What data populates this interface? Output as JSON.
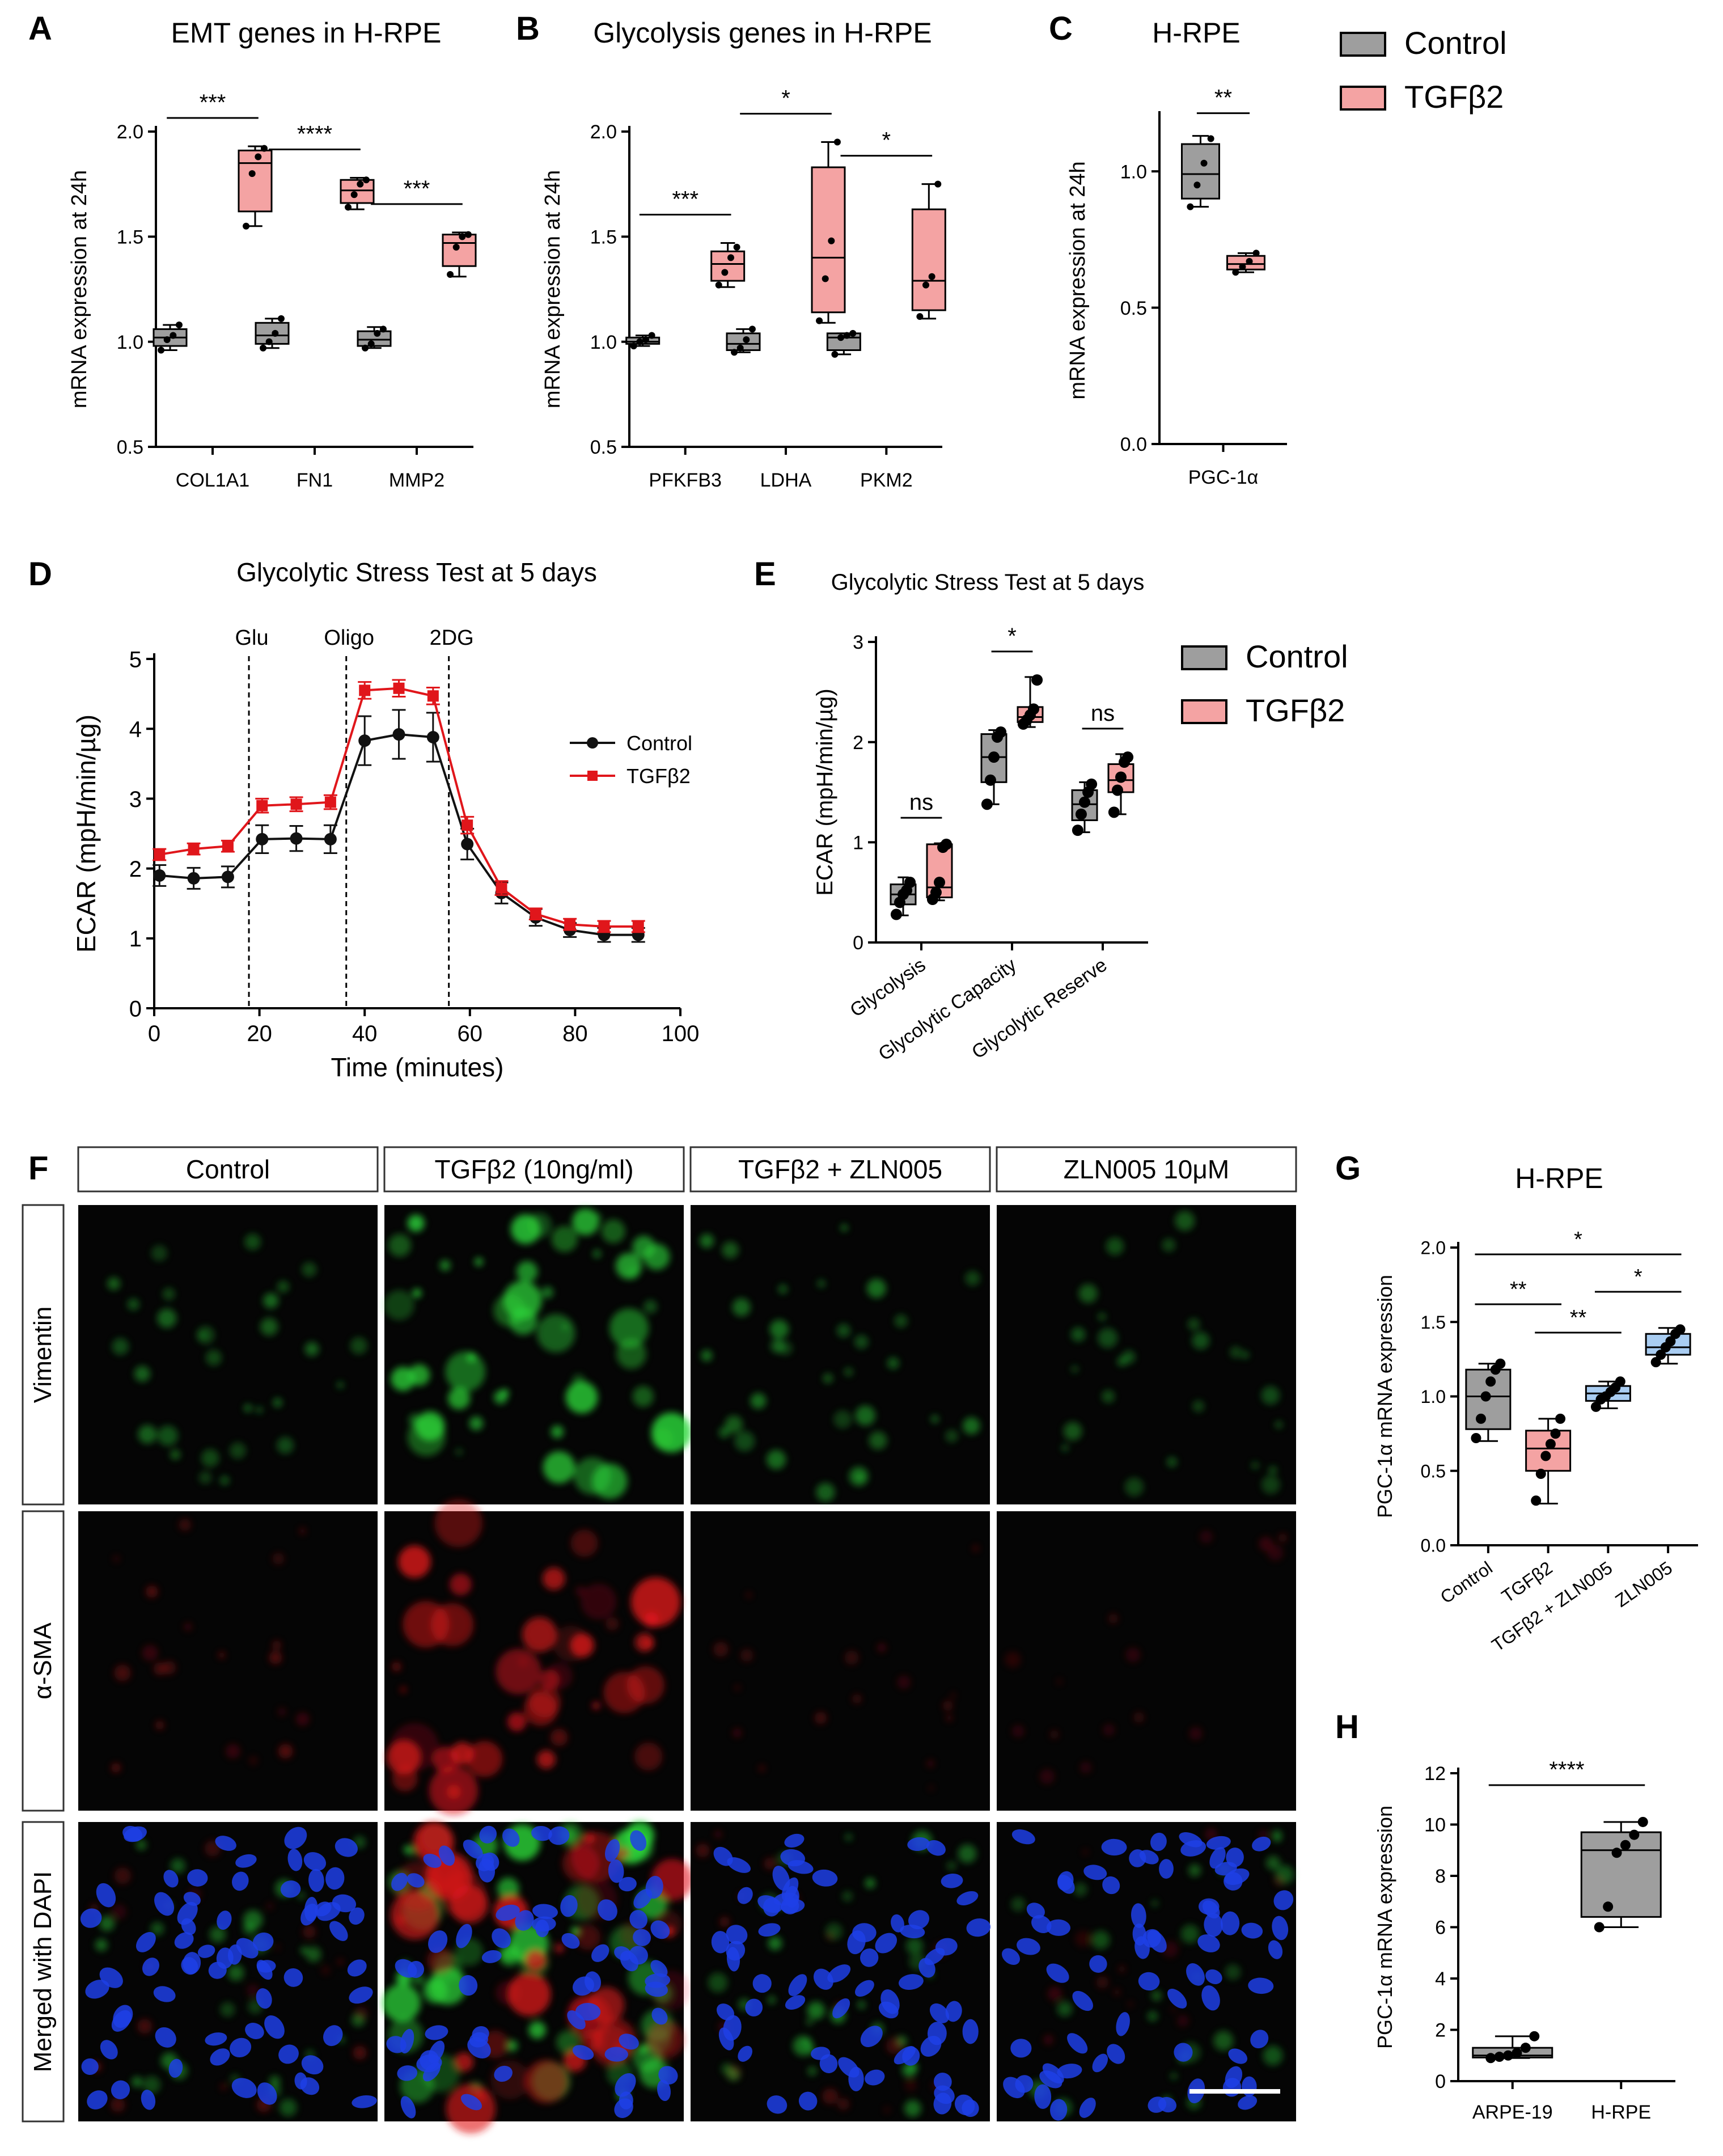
{
  "colors": {
    "control": "#9e9e9e",
    "tgf": "#f4a3a3",
    "zln": "#a9cdf2",
    "tgf_line": "#e0161b",
    "control_line": "#111111"
  },
  "chart_data": [
    {
      "letter": "A",
      "type": "box",
      "title": "EMT genes in H-RPE",
      "ylabel": "mRNA expression at 24h",
      "ylim": [
        0.5,
        2.0
      ],
      "yticks": [
        "0.5",
        "1.0",
        "1.5",
        "2.0"
      ],
      "categories": [
        "COL1A1",
        "FN1",
        "MMP2"
      ],
      "groups": [
        {
          "name": "Control",
          "boxes": [
            {
              "min": 0.96,
              "q1": 0.98,
              "median": 1.02,
              "q3": 1.06,
              "max": 1.08,
              "points": [
                0.96,
                1.01,
                1.03,
                1.08
              ]
            },
            {
              "min": 0.97,
              "q1": 0.99,
              "median": 1.03,
              "q3": 1.09,
              "max": 1.11,
              "points": [
                0.97,
                1.0,
                1.04,
                1.11
              ]
            },
            {
              "min": 0.97,
              "q1": 0.98,
              "median": 1.01,
              "q3": 1.05,
              "max": 1.07,
              "points": [
                0.97,
                0.99,
                1.04,
                1.06
              ]
            }
          ]
        },
        {
          "name": "TGFβ2",
          "boxes": [
            {
              "min": 1.55,
              "q1": 1.62,
              "median": 1.85,
              "q3": 1.91,
              "max": 1.93,
              "points": [
                1.55,
                1.8,
                1.88,
                1.92
              ]
            },
            {
              "min": 1.63,
              "q1": 1.66,
              "median": 1.72,
              "q3": 1.77,
              "max": 1.78,
              "points": [
                1.64,
                1.7,
                1.75,
                1.77
              ]
            },
            {
              "min": 1.31,
              "q1": 1.36,
              "median": 1.47,
              "q3": 1.51,
              "max": 1.52,
              "points": [
                1.32,
                1.45,
                1.5,
                1.51
              ]
            }
          ]
        }
      ],
      "significance": [
        "***",
        "****",
        "***"
      ]
    },
    {
      "letter": "B",
      "type": "box",
      "title": "Glycolysis genes in H-RPE",
      "ylabel": "mRNA expression at 24h",
      "ylim": [
        0.5,
        2.0
      ],
      "yticks": [
        "0.5",
        "1.0",
        "1.5",
        "2.0"
      ],
      "categories": [
        "PFKFB3",
        "LDHA",
        "PKM2"
      ],
      "groups": [
        {
          "name": "Control",
          "boxes": [
            {
              "min": 0.98,
              "q1": 0.99,
              "median": 1.0,
              "q3": 1.02,
              "max": 1.03,
              "points": [
                0.98,
                1.0,
                1.01,
                1.03
              ]
            },
            {
              "min": 0.95,
              "q1": 0.96,
              "median": 0.99,
              "q3": 1.04,
              "max": 1.06,
              "points": [
                0.95,
                0.97,
                1.01,
                1.06
              ]
            },
            {
              "min": 0.94,
              "q1": 0.96,
              "median": 1.02,
              "q3": 1.04,
              "max": 1.04,
              "points": [
                0.94,
                1.02,
                1.03,
                1.04
              ]
            }
          ]
        },
        {
          "name": "TGFβ2",
          "boxes": [
            {
              "min": 1.26,
              "q1": 1.29,
              "median": 1.37,
              "q3": 1.43,
              "max": 1.47,
              "points": [
                1.27,
                1.33,
                1.4,
                1.45
              ]
            },
            {
              "min": 1.09,
              "q1": 1.14,
              "median": 1.4,
              "q3": 1.83,
              "max": 1.95,
              "points": [
                1.1,
                1.3,
                1.48,
                1.95
              ]
            },
            {
              "min": 1.11,
              "q1": 1.15,
              "median": 1.29,
              "q3": 1.63,
              "max": 1.75,
              "points": [
                1.12,
                1.27,
                1.31,
                1.75
              ]
            }
          ]
        }
      ],
      "significance": [
        "***",
        "*",
        "*"
      ]
    },
    {
      "letter": "C",
      "type": "box",
      "title": "H-RPE",
      "ylabel": "mRNA expression at 24h",
      "ylim": [
        0.0,
        1.2
      ],
      "yticks": [
        "0.0",
        "0.5",
        "1.0"
      ],
      "categories": [
        "PGC-1α"
      ],
      "groups": [
        {
          "name": "Control",
          "boxes": [
            {
              "min": 0.87,
              "q1": 0.9,
              "median": 0.99,
              "q3": 1.1,
              "max": 1.13,
              "points": [
                0.87,
                0.95,
                1.03,
                1.12
              ]
            }
          ]
        },
        {
          "name": "TGFβ2",
          "boxes": [
            {
              "min": 0.63,
              "q1": 0.64,
              "median": 0.66,
              "q3": 0.69,
              "max": 0.7,
              "points": [
                0.63,
                0.65,
                0.67,
                0.7
              ]
            }
          ]
        }
      ],
      "significance": [
        "**"
      ]
    },
    {
      "letter": "D",
      "type": "line",
      "title": "Glycolytic Stress Test at 5 days",
      "xlabel": "Time (minutes)",
      "ylabel": "ECAR (mpH/min/µg)",
      "xlim": [
        0,
        100
      ],
      "ylim": [
        0,
        5
      ],
      "xticks": [
        "0",
        "20",
        "40",
        "60",
        "80",
        "100"
      ],
      "yticks": [
        "0",
        "1",
        "2",
        "3",
        "4",
        "5"
      ],
      "injections": [
        {
          "label": "Glu",
          "x": 18
        },
        {
          "label": "Oligo",
          "x": 36.5
        },
        {
          "label": "2DG",
          "x": 56
        }
      ],
      "x": [
        1,
        7.5,
        14,
        20.5,
        27,
        33.5,
        40,
        46.5,
        53,
        59.5,
        66,
        72.5,
        79,
        85.5,
        92
      ],
      "series": [
        {
          "name": "Control",
          "values": [
            1.9,
            1.86,
            1.88,
            2.42,
            2.43,
            2.42,
            3.83,
            3.92,
            3.88,
            2.35,
            1.65,
            1.3,
            1.12,
            1.05,
            1.05
          ],
          "errors": [
            0.15,
            0.15,
            0.15,
            0.2,
            0.18,
            0.2,
            0.35,
            0.35,
            0.35,
            0.22,
            0.15,
            0.12,
            0.1,
            0.1,
            0.1
          ]
        },
        {
          "name": "TGFβ2",
          "values": [
            2.2,
            2.28,
            2.32,
            2.9,
            2.92,
            2.95,
            4.55,
            4.58,
            4.47,
            2.62,
            1.72,
            1.35,
            1.2,
            1.17,
            1.17
          ],
          "errors": [
            0.08,
            0.08,
            0.08,
            0.1,
            0.1,
            0.1,
            0.12,
            0.12,
            0.12,
            0.12,
            0.1,
            0.08,
            0.08,
            0.08,
            0.08
          ]
        }
      ],
      "legend_position": "right"
    },
    {
      "letter": "E",
      "type": "box",
      "title": "Glycolytic Stress Test at 5 days",
      "ylabel": "ECAR (mpH/min/µg)",
      "ylim": [
        0,
        3
      ],
      "yticks": [
        "0",
        "1",
        "2",
        "3"
      ],
      "categories": [
        "Glycolysis",
        "Glycolytic Capacity",
        "Glycolytic Reserve"
      ],
      "groups": [
        {
          "name": "Control",
          "boxes": [
            {
              "min": 0.27,
              "q1": 0.38,
              "median": 0.48,
              "q3": 0.58,
              "max": 0.65,
              "points": [
                0.28,
                0.4,
                0.48,
                0.52,
                0.6
              ]
            },
            {
              "min": 1.38,
              "q1": 1.6,
              "median": 1.85,
              "q3": 2.08,
              "max": 2.12,
              "points": [
                1.38,
                1.62,
                1.85,
                2.05,
                2.1
              ]
            },
            {
              "min": 1.1,
              "q1": 1.22,
              "median": 1.38,
              "q3": 1.52,
              "max": 1.6,
              "points": [
                1.12,
                1.28,
                1.4,
                1.5,
                1.58
              ]
            }
          ]
        },
        {
          "name": "TGFβ2",
          "boxes": [
            {
              "min": 0.42,
              "q1": 0.45,
              "median": 0.55,
              "q3": 0.98,
              "max": 0.99,
              "points": [
                0.43,
                0.5,
                0.6,
                0.95,
                0.98
              ]
            },
            {
              "min": 2.15,
              "q1": 2.2,
              "median": 2.25,
              "q3": 2.35,
              "max": 2.65,
              "points": [
                2.18,
                2.22,
                2.27,
                2.33,
                2.62
              ]
            },
            {
              "min": 1.28,
              "q1": 1.5,
              "median": 1.62,
              "q3": 1.78,
              "max": 1.88,
              "points": [
                1.3,
                1.52,
                1.65,
                1.8,
                1.85
              ]
            }
          ]
        }
      ],
      "significance": [
        "ns",
        "*",
        "ns"
      ]
    },
    {
      "letter": "G",
      "type": "box",
      "title": "H-RPE",
      "ylabel": "PGC-1α mRNA expression",
      "ylim": [
        0.0,
        2.0
      ],
      "yticks": [
        "0.0",
        "0.5",
        "1.0",
        "1.5",
        "2.0"
      ],
      "categories": [
        "Control",
        "TGFβ2",
        "TGFβ2 + ZLN005",
        "ZLN005"
      ],
      "boxes": [
        {
          "min": 0.7,
          "q1": 0.78,
          "median": 1.0,
          "q3": 1.18,
          "max": 1.22,
          "points": [
            0.72,
            0.85,
            1.0,
            1.1,
            1.18,
            1.22
          ]
        },
        {
          "min": 0.28,
          "q1": 0.5,
          "median": 0.65,
          "q3": 0.77,
          "max": 0.85,
          "points": [
            0.3,
            0.48,
            0.6,
            0.68,
            0.75,
            0.85
          ]
        },
        {
          "min": 0.92,
          "q1": 0.97,
          "median": 1.02,
          "q3": 1.07,
          "max": 1.1,
          "points": [
            0.93,
            0.98,
            1.0,
            1.03,
            1.06,
            1.1
          ]
        },
        {
          "min": 1.22,
          "q1": 1.28,
          "median": 1.33,
          "q3": 1.42,
          "max": 1.46,
          "points": [
            1.23,
            1.28,
            1.33,
            1.37,
            1.42,
            1.45
          ]
        }
      ],
      "significance": [
        {
          "label": "*",
          "from": 0,
          "to": 3
        },
        {
          "label": "**",
          "from": 0,
          "to": 1
        },
        {
          "label": "**",
          "from": 1,
          "to": 2
        },
        {
          "label": "*",
          "from": 2,
          "to": 3
        }
      ]
    },
    {
      "letter": "H",
      "type": "box",
      "ylabel": "PGC-1α mRNA expression",
      "ylim": [
        0,
        12
      ],
      "yticks": [
        "0",
        "2",
        "4",
        "6",
        "8",
        "10",
        "12"
      ],
      "categories": [
        "ARPE-19",
        "H-RPE"
      ],
      "boxes": [
        {
          "min": 0.9,
          "q1": 0.92,
          "median": 1.0,
          "q3": 1.3,
          "max": 1.75,
          "points": [
            0.9,
            0.95,
            1.0,
            1.1,
            1.3,
            1.75
          ]
        },
        {
          "min": 6.0,
          "q1": 6.4,
          "median": 9.0,
          "q3": 9.7,
          "max": 10.1,
          "points": [
            6.0,
            6.8,
            8.9,
            9.2,
            9.6,
            10.1
          ]
        }
      ],
      "significance": [
        {
          "label": "****",
          "from": 0,
          "to": 1
        }
      ]
    }
  ],
  "legends": [
    {
      "items": [
        "Control",
        "TGFβ2"
      ]
    },
    {
      "items": [
        "Control",
        "TGFβ2"
      ]
    }
  ],
  "panel_f": {
    "letter": "F",
    "columns": [
      "Control",
      "TGFβ2 (10ng/ml)",
      "TGFβ2 + ZLN005",
      "ZLN005 10μM"
    ],
    "rows": [
      "Vimentin",
      "α-SMA",
      "Merged with DAPI"
    ],
    "intensity": {
      "vimentin": [
        0.35,
        1.0,
        0.45,
        0.22
      ],
      "sma": [
        0.3,
        1.0,
        0.18,
        0.12
      ]
    }
  }
}
